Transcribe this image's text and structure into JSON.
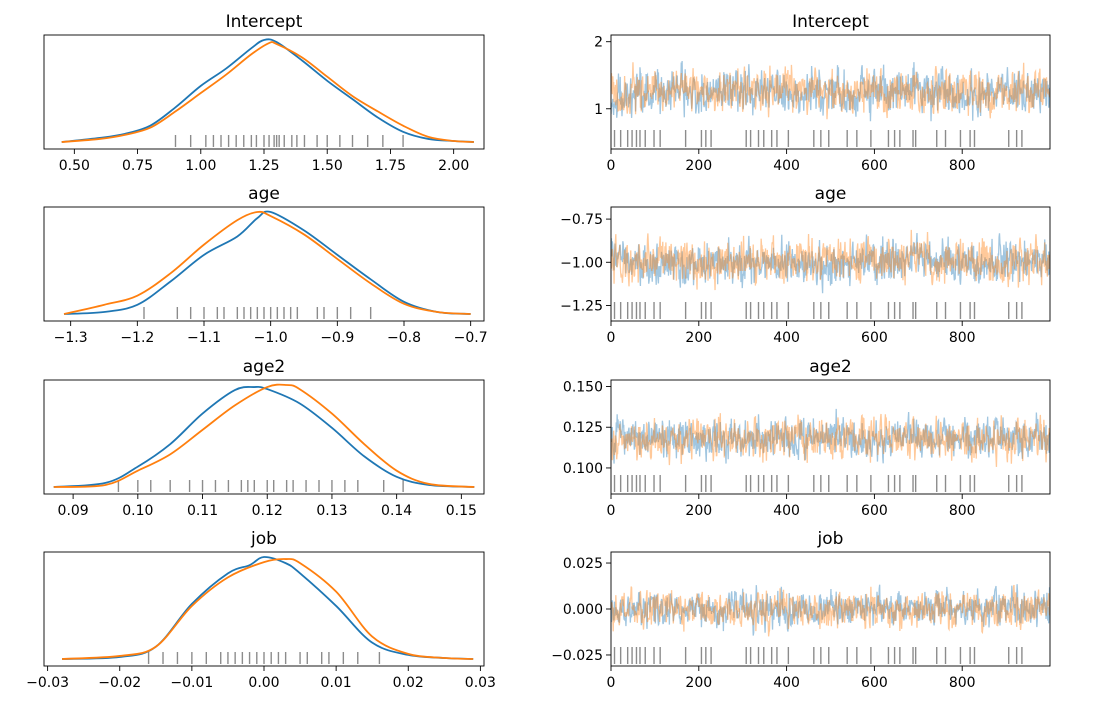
{
  "colors": {
    "chain_a": "#1f77b4",
    "chain_b": "#ff7f0e",
    "rug": "#000000",
    "axes": "#000000"
  },
  "chart_data": [
    {
      "type": "line",
      "kind": "kde",
      "title": "Intercept",
      "xlim": [
        0.38,
        2.12
      ],
      "ylim": [
        0,
        1
      ],
      "xticks": [
        0.5,
        0.75,
        1.0,
        1.25,
        1.5,
        1.75,
        2.0
      ],
      "xtick_labels": [
        "0.50",
        "0.75",
        "1.00",
        "1.25",
        "1.50",
        "1.75",
        "2.00"
      ],
      "series": [
        {
          "x": [
            0.45,
            0.6,
            0.7,
            0.8,
            0.9,
            1.0,
            1.1,
            1.2,
            1.25,
            1.3,
            1.4,
            1.5,
            1.6,
            1.7,
            1.8,
            1.9,
            2.0,
            2.08
          ],
          "y": [
            0.0,
            0.04,
            0.08,
            0.16,
            0.34,
            0.55,
            0.72,
            0.92,
            1.0,
            0.98,
            0.8,
            0.6,
            0.42,
            0.24,
            0.1,
            0.03,
            0.01,
            0.0
          ]
        },
        {
          "x": [
            0.45,
            0.6,
            0.7,
            0.8,
            0.9,
            1.0,
            1.1,
            1.2,
            1.27,
            1.3,
            1.4,
            1.5,
            1.6,
            1.7,
            1.8,
            1.9,
            2.0,
            2.08
          ],
          "y": [
            0.0,
            0.03,
            0.07,
            0.14,
            0.3,
            0.48,
            0.66,
            0.86,
            0.97,
            0.96,
            0.83,
            0.64,
            0.45,
            0.3,
            0.16,
            0.05,
            0.01,
            0.0
          ]
        }
      ],
      "rug": [
        0.9,
        0.96,
        1.02,
        1.05,
        1.08,
        1.11,
        1.14,
        1.17,
        1.2,
        1.22,
        1.25,
        1.27,
        1.29,
        1.3,
        1.31,
        1.33,
        1.36,
        1.38,
        1.41,
        1.46,
        1.5,
        1.55,
        1.6,
        1.66,
        1.72,
        1.8
      ]
    },
    {
      "type": "line",
      "kind": "kde",
      "title": "age",
      "xlim": [
        -1.34,
        -0.68
      ],
      "ylim": [
        0,
        1
      ],
      "xticks": [
        -1.3,
        -1.2,
        -1.1,
        -1.0,
        -0.9,
        -0.8,
        -0.7
      ],
      "xtick_labels": [
        "−1.3",
        "−1.2",
        "−1.1",
        "−1.0",
        "−0.9",
        "−0.8",
        "−0.7"
      ],
      "series": [
        {
          "x": [
            -1.31,
            -1.25,
            -1.2,
            -1.15,
            -1.1,
            -1.05,
            -1.02,
            -1.0,
            -0.95,
            -0.9,
            -0.85,
            -0.8,
            -0.75,
            -0.7
          ],
          "y": [
            0.0,
            0.02,
            0.09,
            0.32,
            0.58,
            0.76,
            0.94,
            1.0,
            0.82,
            0.58,
            0.34,
            0.12,
            0.02,
            0.0
          ]
        },
        {
          "x": [
            -1.31,
            -1.25,
            -1.2,
            -1.15,
            -1.1,
            -1.05,
            -1.02,
            -1.0,
            -0.95,
            -0.9,
            -0.85,
            -0.8,
            -0.75,
            -0.7
          ],
          "y": [
            0.0,
            0.09,
            0.18,
            0.4,
            0.68,
            0.92,
            1.0,
            0.96,
            0.78,
            0.54,
            0.3,
            0.1,
            0.02,
            0.0
          ]
        }
      ],
      "rug": [
        -1.19,
        -1.14,
        -1.12,
        -1.1,
        -1.08,
        -1.07,
        -1.05,
        -1.04,
        -1.03,
        -1.02,
        -1.01,
        -1.0,
        -0.99,
        -0.98,
        -0.97,
        -0.96,
        -0.93,
        -0.92,
        -0.9,
        -0.88,
        -0.85
      ]
    },
    {
      "type": "line",
      "kind": "kde",
      "title": "age2",
      "xlim": [
        0.0855,
        0.1535
      ],
      "ylim": [
        0,
        1
      ],
      "xticks": [
        0.09,
        0.1,
        0.11,
        0.12,
        0.13,
        0.14,
        0.15
      ],
      "xtick_labels": [
        "0.09",
        "0.10",
        "0.11",
        "0.12",
        "0.13",
        "0.14",
        "0.15"
      ],
      "series": [
        {
          "x": [
            0.087,
            0.095,
            0.1,
            0.105,
            0.11,
            0.115,
            0.118,
            0.12,
            0.125,
            0.13,
            0.135,
            0.14,
            0.145,
            0.152
          ],
          "y": [
            0.0,
            0.04,
            0.2,
            0.42,
            0.72,
            0.95,
            0.98,
            0.96,
            0.82,
            0.58,
            0.3,
            0.1,
            0.02,
            0.0
          ]
        },
        {
          "x": [
            0.087,
            0.095,
            0.1,
            0.105,
            0.11,
            0.115,
            0.12,
            0.123,
            0.125,
            0.13,
            0.135,
            0.14,
            0.145,
            0.152
          ],
          "y": [
            0.0,
            0.02,
            0.16,
            0.32,
            0.56,
            0.8,
            0.98,
            1.0,
            0.96,
            0.72,
            0.42,
            0.16,
            0.03,
            0.0
          ]
        }
      ],
      "rug": [
        0.097,
        0.1,
        0.102,
        0.105,
        0.108,
        0.11,
        0.112,
        0.114,
        0.116,
        0.117,
        0.118,
        0.12,
        0.121,
        0.123,
        0.124,
        0.126,
        0.128,
        0.13,
        0.132,
        0.134,
        0.138,
        0.141
      ]
    },
    {
      "type": "line",
      "kind": "kde",
      "title": "job",
      "xlim": [
        -0.0305,
        0.0305
      ],
      "ylim": [
        0,
        1
      ],
      "xticks": [
        -0.03,
        -0.02,
        -0.01,
        0.0,
        0.01,
        0.02,
        0.03
      ],
      "xtick_labels": [
        "−0.03",
        "−0.02",
        "−0.01",
        "0.00",
        "0.01",
        "0.02",
        "0.03"
      ],
      "series": [
        {
          "x": [
            -0.028,
            -0.02,
            -0.015,
            -0.01,
            -0.005,
            -0.002,
            0.0,
            0.003,
            0.005,
            0.01,
            0.015,
            0.02,
            0.025,
            0.029
          ],
          "y": [
            0.0,
            0.02,
            0.12,
            0.54,
            0.84,
            0.92,
            1.0,
            0.94,
            0.84,
            0.52,
            0.16,
            0.04,
            0.01,
            0.0
          ]
        },
        {
          "x": [
            -0.028,
            -0.02,
            -0.015,
            -0.01,
            -0.005,
            0.0,
            0.003,
            0.005,
            0.01,
            0.015,
            0.02,
            0.025,
            0.029
          ],
          "y": [
            0.0,
            0.03,
            0.12,
            0.52,
            0.8,
            0.95,
            0.98,
            0.94,
            0.66,
            0.22,
            0.05,
            0.01,
            0.0
          ]
        }
      ],
      "rug": [
        -0.016,
        -0.014,
        -0.012,
        -0.01,
        -0.008,
        -0.006,
        -0.005,
        -0.004,
        -0.003,
        -0.002,
        -0.001,
        0.0,
        0.001,
        0.002,
        0.003,
        0.005,
        0.006,
        0.008,
        0.009,
        0.011,
        0.013,
        0.016
      ]
    },
    {
      "type": "line",
      "kind": "trace",
      "title": "Intercept",
      "xlim": [
        0,
        1000
      ],
      "ylim": [
        0.4,
        2.1
      ],
      "xticks": [
        0,
        200,
        400,
        600,
        800
      ],
      "xtick_labels": [
        "0",
        "200",
        "400",
        "600",
        "800"
      ],
      "yticks": [
        1,
        2
      ],
      "ytick_labels": [
        "1",
        "2"
      ],
      "chain_mean": 1.25,
      "chain_spread": 0.24,
      "series": [
        {
          "x": [
            0,
            100,
            200,
            300,
            400,
            500,
            600,
            700,
            800,
            900,
            999
          ],
          "y": [
            0.98,
            1.3,
            1.15,
            1.42,
            1.1,
            1.28,
            1.18,
            1.36,
            1.05,
            1.3,
            1.2
          ]
        },
        {
          "x": [
            0,
            100,
            200,
            300,
            400,
            500,
            600,
            700,
            800,
            900,
            999
          ],
          "y": [
            1.1,
            1.22,
            1.35,
            1.08,
            1.3,
            1.15,
            1.4,
            1.12,
            1.28,
            1.25,
            1.32
          ]
        }
      ],
      "rug": [
        8,
        22,
        38,
        48,
        58,
        66,
        78,
        98,
        112,
        170,
        206,
        216,
        228,
        308,
        318,
        336,
        348,
        366,
        378,
        404,
        462,
        478,
        496,
        538,
        560,
        592,
        632,
        646,
        658,
        688,
        694,
        742,
        762,
        796,
        818,
        828,
        906,
        924,
        936
      ]
    },
    {
      "type": "line",
      "kind": "trace",
      "title": "age",
      "xlim": [
        0,
        1000
      ],
      "ylim": [
        -1.34,
        -0.68
      ],
      "xticks": [
        0,
        200,
        400,
        600,
        800
      ],
      "xtick_labels": [
        "0",
        "200",
        "400",
        "600",
        "800"
      ],
      "yticks": [
        -0.75,
        -1.0,
        -1.25
      ],
      "ytick_labels": [
        "−0.75",
        "−1.00",
        "−1.25"
      ],
      "chain_mean": -1.0,
      "chain_spread": 0.09,
      "series": [
        {
          "x": [
            0,
            100,
            200,
            300,
            400,
            500,
            600,
            700,
            800,
            900,
            999
          ],
          "y": [
            -0.85,
            -1.05,
            -0.98,
            -1.02,
            -0.95,
            -1.08,
            -1.0,
            -0.92,
            -1.04,
            -0.97,
            -1.0
          ]
        },
        {
          "x": [
            0,
            100,
            200,
            300,
            400,
            500,
            600,
            700,
            800,
            900,
            999
          ],
          "y": [
            -1.1,
            -0.96,
            -1.05,
            -0.98,
            -1.06,
            -0.95,
            -1.02,
            -1.0,
            -0.96,
            -1.05,
            -0.98
          ]
        }
      ],
      "rug": [
        8,
        22,
        38,
        48,
        58,
        66,
        78,
        98,
        112,
        170,
        206,
        216,
        228,
        308,
        318,
        336,
        348,
        366,
        378,
        404,
        462,
        478,
        496,
        538,
        560,
        592,
        632,
        646,
        658,
        688,
        694,
        742,
        762,
        796,
        818,
        828,
        906,
        924,
        936
      ]
    },
    {
      "type": "line",
      "kind": "trace",
      "title": "age2",
      "xlim": [
        0,
        1000
      ],
      "ylim": [
        0.084,
        0.154
      ],
      "xticks": [
        0,
        200,
        400,
        600,
        800
      ],
      "xtick_labels": [
        "0",
        "200",
        "400",
        "600",
        "800"
      ],
      "yticks": [
        0.15,
        0.125,
        0.1
      ],
      "ytick_labels": [
        "0.150",
        "0.125",
        "0.100"
      ],
      "chain_mean": 0.118,
      "chain_spread": 0.009,
      "series": [
        {
          "x": [
            0,
            100,
            200,
            300,
            400,
            500,
            600,
            700,
            800,
            900,
            999
          ],
          "y": [
            0.112,
            0.122,
            0.115,
            0.125,
            0.118,
            0.12,
            0.114,
            0.124,
            0.116,
            0.121,
            0.118
          ]
        },
        {
          "x": [
            0,
            100,
            200,
            300,
            400,
            500,
            600,
            700,
            800,
            900,
            999
          ],
          "y": [
            0.118,
            0.115,
            0.124,
            0.112,
            0.122,
            0.117,
            0.123,
            0.114,
            0.12,
            0.116,
            0.122
          ]
        }
      ],
      "rug": [
        8,
        22,
        38,
        48,
        58,
        66,
        78,
        98,
        112,
        170,
        206,
        216,
        228,
        308,
        318,
        336,
        348,
        366,
        378,
        404,
        462,
        478,
        496,
        538,
        560,
        592,
        632,
        646,
        658,
        688,
        694,
        742,
        762,
        796,
        818,
        828,
        906,
        924,
        936
      ]
    },
    {
      "type": "line",
      "kind": "trace",
      "title": "job",
      "xlim": [
        0,
        1000
      ],
      "ylim": [
        -0.031,
        0.031
      ],
      "xticks": [
        0,
        200,
        400,
        600,
        800
      ],
      "xtick_labels": [
        "0",
        "200",
        "400",
        "600",
        "800"
      ],
      "yticks": [
        0.025,
        0.0,
        -0.025
      ],
      "ytick_labels": [
        "0.025",
        "0.000",
        "−0.025"
      ],
      "chain_mean": 0.0,
      "chain_spread": 0.007,
      "series": [
        {
          "x": [
            0,
            100,
            200,
            300,
            400,
            500,
            600,
            700,
            800,
            900,
            999
          ],
          "y": [
            -0.002,
            0.004,
            -0.003,
            0.002,
            -0.004,
            0.003,
            0.0,
            0.005,
            -0.002,
            0.002,
            0.0
          ]
        },
        {
          "x": [
            0,
            100,
            200,
            300,
            400,
            500,
            600,
            700,
            800,
            900,
            999
          ],
          "y": [
            0.003,
            -0.002,
            0.004,
            -0.003,
            0.002,
            -0.001,
            0.004,
            -0.002,
            0.001,
            -0.003,
            0.002
          ]
        }
      ],
      "rug": [
        8,
        22,
        38,
        48,
        58,
        66,
        78,
        98,
        112,
        170,
        206,
        216,
        228,
        308,
        318,
        336,
        348,
        366,
        378,
        404,
        462,
        478,
        496,
        538,
        560,
        592,
        632,
        646,
        658,
        688,
        694,
        742,
        762,
        796,
        818,
        828,
        906,
        924,
        936
      ]
    }
  ]
}
